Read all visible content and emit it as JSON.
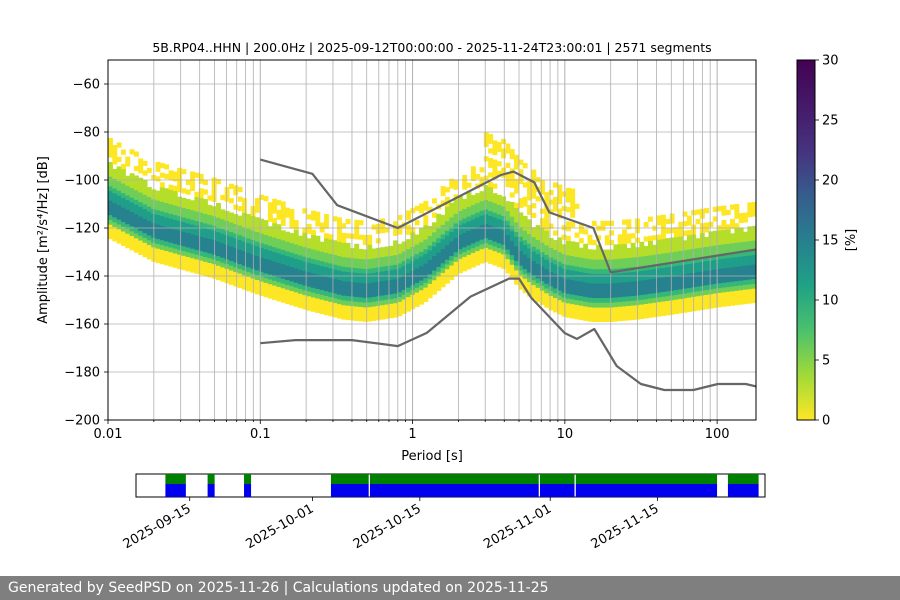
{
  "footer": {
    "text": "Generated by SeedPSD on 2025-11-26 | Calculations updated on 2025-11-25"
  },
  "chart_data": [
    {
      "type": "heatmap",
      "title": "5B.RP04..HHN | 200.0Hz | 2025-09-12T00:00:00 - 2025-11-24T23:00:01 | 2571 segments",
      "xlabel": "Period [s]",
      "ylabel": "Amplitude [m²/s⁴/Hz] [dB]",
      "x_scale": "log",
      "xlim": [
        0.01,
        180
      ],
      "ylim": [
        -200,
        -50
      ],
      "grid": true,
      "x_ticks": [
        0.01,
        0.1,
        1,
        10,
        100
      ],
      "x_tick_labels": [
        "0.01",
        "0.1",
        "1",
        "10",
        "100"
      ],
      "y_ticks": [
        -200,
        -180,
        -160,
        -140,
        -120,
        -100,
        -80,
        -60
      ],
      "y_tick_labels": [
        "−200",
        "−180",
        "−160",
        "−140",
        "−120",
        "−100",
        "−80",
        "−60"
      ],
      "colorbar": {
        "label": "[%]",
        "colormap": "viridis",
        "range": [
          0,
          30
        ],
        "ticks": [
          0,
          5,
          10,
          15,
          20,
          25,
          30
        ],
        "tick_labels": [
          "0",
          "5",
          "10",
          "15",
          "20",
          "25",
          "30"
        ]
      },
      "psd_mode_ridge": {
        "period": [
          0.01,
          0.02,
          0.05,
          0.1,
          0.2,
          0.35,
          0.5,
          0.8,
          1.2,
          2,
          3,
          4,
          5,
          6,
          8,
          10,
          15,
          20,
          30,
          50,
          100,
          180
        ],
        "amplitude_db": [
          -113,
          -123,
          -130,
          -137,
          -143,
          -147,
          -148,
          -146,
          -140,
          -128,
          -123,
          -126,
          -134,
          -138,
          -143,
          -146,
          -148,
          -148,
          -147,
          -145,
          -142,
          -140
        ]
      },
      "series": [
        {
          "name": "NHNM",
          "color": "#666666",
          "period": [
            0.1,
            0.17,
            0.22,
            0.32,
            0.8,
            3.8,
            4.6,
            6.3,
            7.9,
            15.4,
            20,
            354.8
          ],
          "amplitude_db": [
            -91.5,
            -95.5,
            -97.4,
            -110.5,
            -120.0,
            -97.9,
            -96.5,
            -101.0,
            -113.5,
            -120.0,
            -138.5,
            -126.0
          ]
        },
        {
          "name": "NLNM",
          "color": "#666666",
          "period": [
            0.1,
            0.17,
            0.4,
            0.8,
            1.24,
            2.4,
            4.3,
            5.0,
            6.0,
            10.0,
            12.0,
            15.6,
            21.9,
            31.6,
            45.0,
            70.0,
            101.0,
            154.0,
            180.0
          ],
          "amplitude_db": [
            -168.0,
            -166.7,
            -166.7,
            -169.2,
            -163.7,
            -148.6,
            -141.1,
            -141.1,
            -149.0,
            -163.8,
            -166.2,
            -162.1,
            -177.5,
            -185.0,
            -187.5,
            -187.5,
            -185.0,
            -185.0,
            -186.0
          ]
        }
      ]
    },
    {
      "type": "timeline",
      "x_type": "date",
      "xlim": [
        "2025-09-08",
        "2025-11-29"
      ],
      "x_ticks": [
        "2025-09-15",
        "2025-10-01",
        "2025-10-15",
        "2025-11-01",
        "2025-11-15"
      ],
      "x_tick_labels": [
        "2025-09-15",
        "2025-10-01",
        "2025-10-15",
        "2025-11-01",
        "2025-11-15"
      ],
      "data_availability_color": "#0000ee",
      "psd_availability_color": "#008000",
      "coverage_intervals": [
        [
          "2025-09-11T20:00",
          "2025-09-14T12:00"
        ],
        [
          "2025-09-17T08:00",
          "2025-09-18T06:00"
        ],
        [
          "2025-09-22T02:00",
          "2025-09-23T00:00"
        ],
        [
          "2025-10-03T10:00",
          "2025-10-08T08:00"
        ],
        [
          "2025-10-08T12:00",
          "2025-10-30T12:00"
        ],
        [
          "2025-10-30T16:00",
          "2025-11-04T04:00"
        ],
        [
          "2025-11-04T08:00",
          "2025-11-22T18:00"
        ],
        [
          "2025-11-24T04:00",
          "2025-11-28T04:00"
        ]
      ]
    }
  ]
}
